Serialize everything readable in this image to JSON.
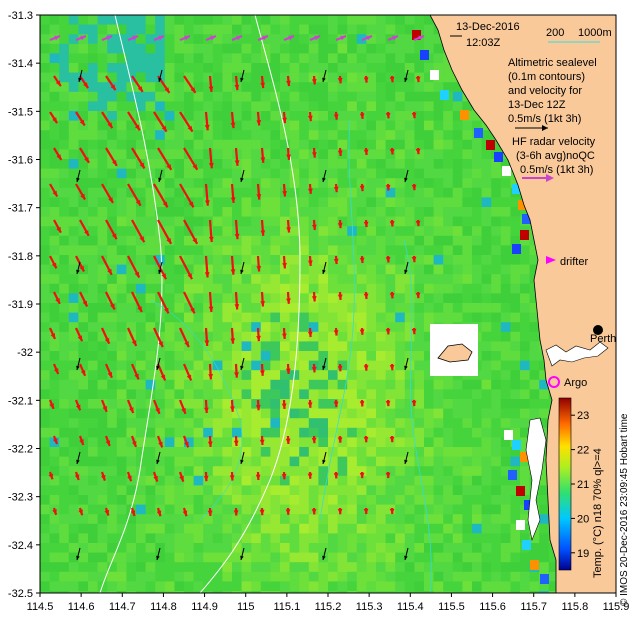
{
  "map": {
    "date_label": "13-Dec-2016",
    "time_label": "12:03Z",
    "scale_label": "200",
    "scale_depth": "1000m",
    "altimetry_label_lines": [
      "Altimetric sealevel",
      "(0.1m contours)",
      "and velocity for",
      "13-Dec 12Z",
      "0.5m/s (1kt 3h)"
    ],
    "hf_label_lines": [
      "HF radar velocity",
      "(3-6h avg)noQC",
      "0.5m/s (1kt 3h)"
    ],
    "drifter_label": "drifter",
    "city_label": "Perth",
    "argo_label": "Argo",
    "side_text_left": "© IMOS 20-Dec-2016 23:09:45 Hobart time",
    "side_text_right": "Temp. (°C) n18 70% ql>=4",
    "colorbar": {
      "ticks": [
        "19",
        "20",
        "21",
        "22",
        "23"
      ],
      "vmin": 18.5,
      "vmax": 23.5
    },
    "axes": {
      "x_ticks": [
        "114.5",
        "114.6",
        "114.7",
        "114.8",
        "114.9",
        "115",
        "115.1",
        "115.2",
        "115.3",
        "115.4",
        "115.5",
        "115.6",
        "115.7",
        "115.8",
        "115.9"
      ],
      "y_ticks": [
        "-31.3",
        "-31.4",
        "-31.5",
        "-31.6",
        "-31.7",
        "-31.8",
        "-31.9",
        "-32",
        "-32.1",
        "-32.2",
        "-32.3",
        "-32.4",
        "-32.5"
      ],
      "lon_range": [
        114.5,
        115.9
      ],
      "lat_range": [
        -32.5,
        -31.3
      ]
    },
    "colors": {
      "land": "#f9c99a",
      "hf_arrow": "#ee1111",
      "hf_arrow_top": "#cc44cc",
      "alt_arrow": "#000000",
      "contour": "#ffffff",
      "isobath": "#33dddd",
      "argo": "#ff00ff",
      "drifter": "#ff00ff"
    }
  }
}
